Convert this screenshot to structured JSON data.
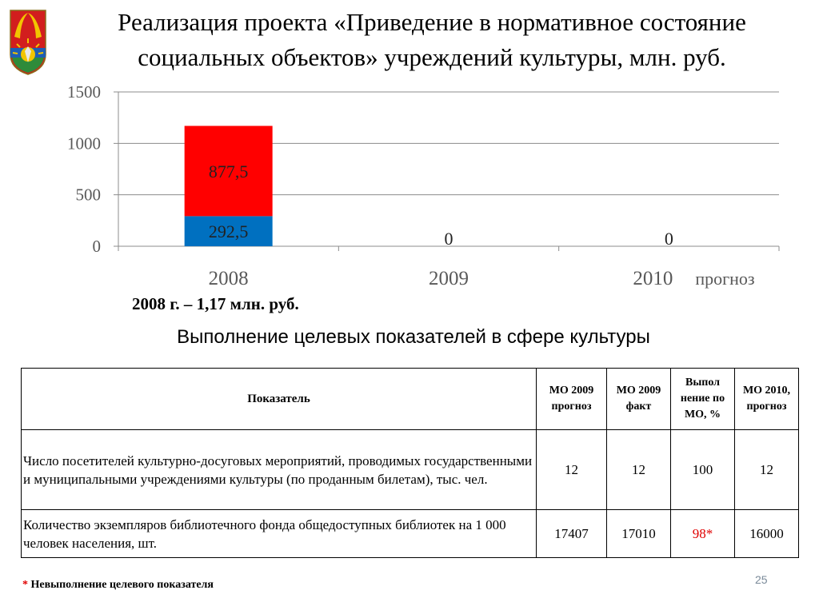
{
  "slide": {
    "title": "Реализация проекта «Приведение в нормативное состояние социальных объектов» учреждений культуры, млн. руб.",
    "summary": "2008 г. – 1,17 млн. руб.",
    "subtitle": "Выполнение целевых показателей в сфере культуры",
    "footnote_star": "*",
    "footnote_text": " Невыполнение целевого показателя",
    "page_number": "25"
  },
  "chart_data": {
    "type": "bar",
    "stacked": true,
    "categories": [
      "2008",
      "2009",
      "2010"
    ],
    "category_suffix": [
      "",
      "",
      "прогноз"
    ],
    "series": [
      {
        "values": [
          292.5,
          0,
          0
        ],
        "labels": [
          "292,5",
          "0",
          "0"
        ],
        "color": "#0070c0"
      },
      {
        "values": [
          877.5,
          0,
          0
        ],
        "labels": [
          "877,5",
          "",
          ""
        ],
        "color": "#ff0000"
      }
    ],
    "ylim": [
      0,
      1500
    ],
    "yticks": [
      0,
      500,
      1000,
      1500
    ],
    "ytick_labels": [
      "0",
      "500",
      "1000",
      "1500"
    ],
    "grid": true,
    "title": "",
    "xlabel": "",
    "ylabel": ""
  },
  "table": {
    "headers": {
      "indicator": "Показатель",
      "mo2009_forecast": "МО 2009 прогноз",
      "mo2009_fact": "МО 2009 факт",
      "execution_pct": "Выпол нение по МО, %",
      "mo2010_forecast": "МО 2010, прогноз"
    },
    "rows": [
      {
        "indicator": "Число посетителей культурно-досуговых мероприятий, проводимых государственными и муниципальными учреждениями культуры (по проданным билетам), тыс. чел.",
        "mo2009_forecast": "12",
        "mo2009_fact": "12",
        "execution_pct": "100",
        "mo2010_forecast": "12"
      },
      {
        "indicator": "Количество экземпляров библиотечного фонда общедоступных библиотек на 1 000 человек населения, шт.",
        "mo2009_forecast": "17407",
        "mo2009_fact": "17010",
        "execution_pct": "98*",
        "mo2010_forecast": "16000"
      }
    ]
  },
  "colors": {
    "bar_blue": "#0070c0",
    "bar_red": "#ff0000",
    "highlight_red": "#e00000",
    "axis_text": "#595959"
  },
  "emblem": {
    "icon": "coat-of-arms-emblem"
  }
}
